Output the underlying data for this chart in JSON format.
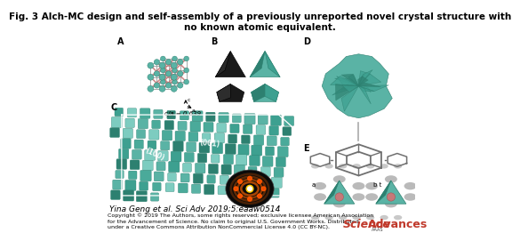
{
  "title_line1": "Fig. 3 Alch-MC design and self-assembly of a previously unreported novel crystal structure with",
  "title_line2": "no known atomic equivalent.",
  "title_fontsize": 7.5,
  "title_fontweight": "bold",
  "citation": "Yina Geng et al. Sci Adv 2019;5:eaaw0514",
  "citation_fontsize": 6.5,
  "citation_style": "italic",
  "copyright_text": "Copyright © 2019 The Authors, some rights reserved; exclusive licensee American Association\nfor the Advancement of Science. No claim to original U.S. Government Works. Distributed\nunder a Creative Commons Attribution NonCommercial License 4.0 (CC BY-NC).",
  "copyright_fontsize": 4.5,
  "science_text": "Science",
  "advances_text": "Advances",
  "logo_fontsize": 9,
  "science_color": "#c0392b",
  "advances_color": "#c0392b",
  "aaas_text": "AAAS",
  "aaas_fontsize": 3.5,
  "label_fontsize": 7,
  "label_fontweight": "bold",
  "bg_color": "#ffffff",
  "teal": "#5ab3a5",
  "dark_teal": "#2d8070",
  "mid_teal": "#3da090",
  "light_teal": "#7dccc0",
  "pale_teal": "#a0d8d0",
  "pink": "#c87878",
  "gray_wire": "#aaaaaa",
  "gray_hex": "#707070",
  "black": "#111111",
  "dark_gray": "#333333",
  "orange": "#ff7700",
  "yellow": "#ffdd44",
  "white": "#ffffff",
  "cia_text": "c/a = 0.639",
  "plane_100": "(100)",
  "plane_001": "(001)"
}
